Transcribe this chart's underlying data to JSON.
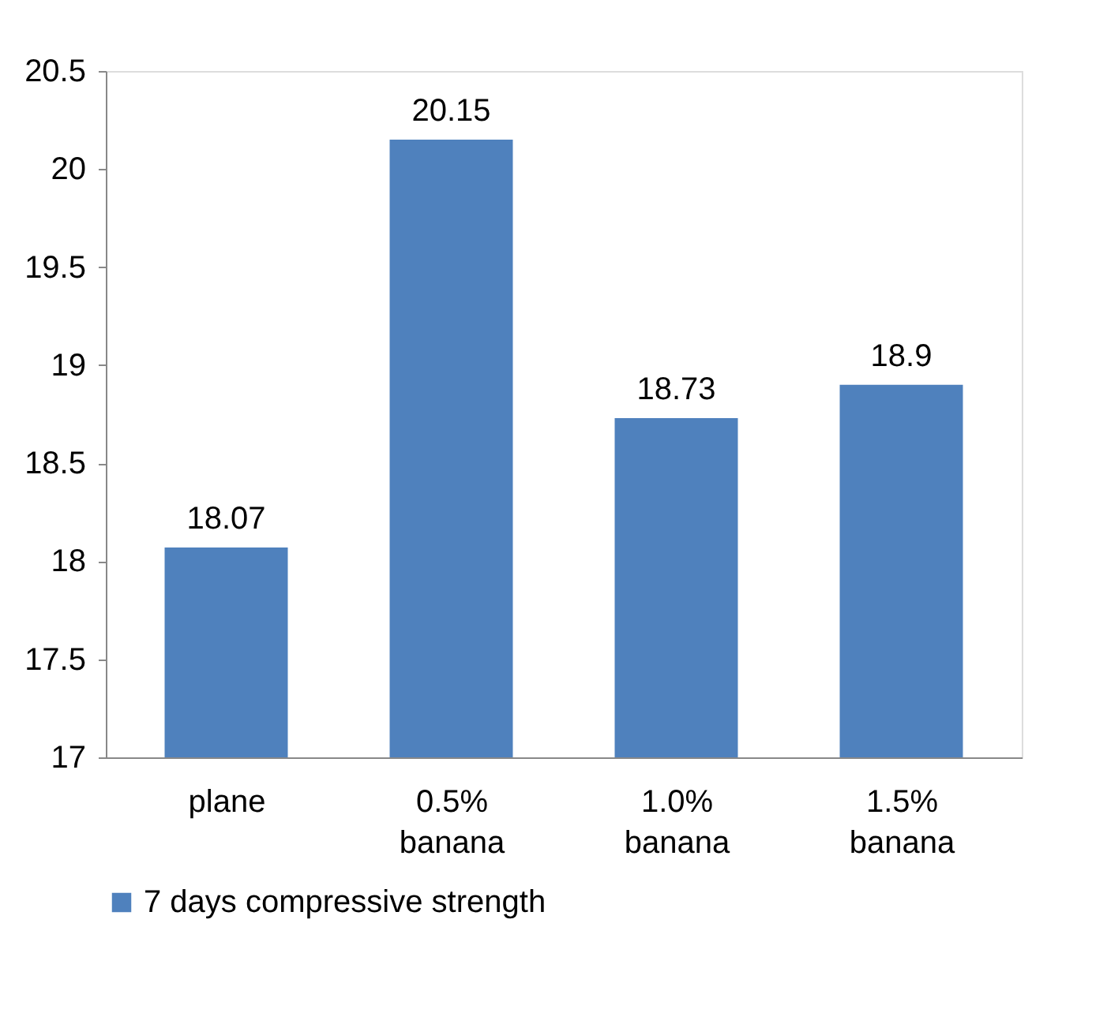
{
  "chart_data": {
    "type": "bar",
    "categories": [
      "plane",
      "0.5% banana",
      "1.0% banana",
      "1.5% banana"
    ],
    "series": [
      {
        "name": "7 days compressive strength",
        "color": "#4f81bd",
        "values": [
          18.07,
          20.15,
          18.73,
          18.9
        ]
      }
    ],
    "ylim": [
      17,
      20.5
    ],
    "yticks": [
      17,
      17.5,
      18,
      18.5,
      19,
      19.5,
      20,
      20.5
    ],
    "data_labels": true,
    "grid": false,
    "legend": "bottom"
  }
}
